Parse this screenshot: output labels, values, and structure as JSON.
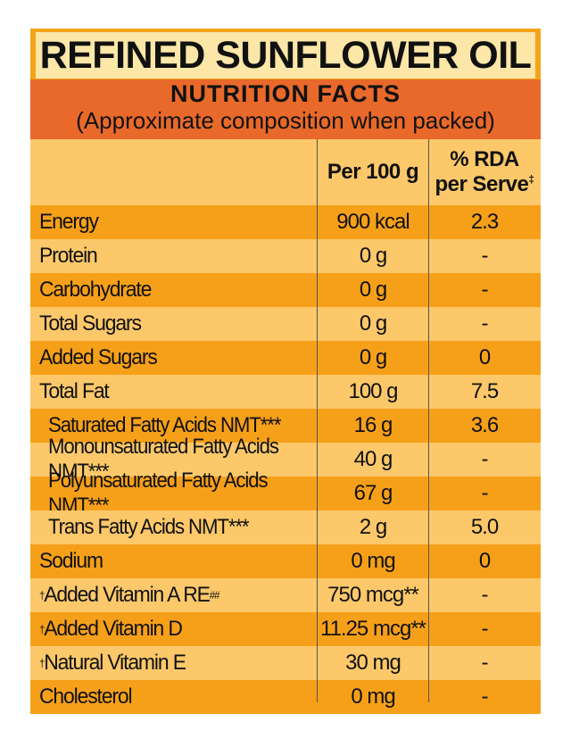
{
  "title": "REFINED SUNFLOWER OIL",
  "nutrition_heading": "NUTRITION FACTS",
  "nutrition_subheading": "(Approximate composition when packed)",
  "columns": {
    "per100": "Per 100 g",
    "rda_line1": "% RDA",
    "rda_line2": "per Serve",
    "rda_mark": "‡"
  },
  "rows": [
    {
      "name": "Energy",
      "prefix": "",
      "suffix": "",
      "per100": "900 kcal",
      "per100_suffix": "",
      "rda": "2.3"
    },
    {
      "name": "Protein",
      "prefix": "",
      "suffix": "",
      "per100": "0 g",
      "per100_suffix": "",
      "rda": "-"
    },
    {
      "name": "Carbohydrate",
      "prefix": "",
      "suffix": "",
      "per100": "0 g",
      "per100_suffix": "",
      "rda": "-"
    },
    {
      "name": "Total Sugars",
      "prefix": "",
      "suffix": "",
      "per100": "0 g",
      "per100_suffix": "",
      "rda": "-"
    },
    {
      "name": "Added Sugars",
      "prefix": "",
      "suffix": "",
      "per100": "0 g",
      "per100_suffix": "",
      "rda": "0"
    },
    {
      "name": "Total Fat",
      "prefix": "",
      "suffix": "",
      "per100": "100 g",
      "per100_suffix": "",
      "rda": "7.5"
    },
    {
      "name": "Saturated Fatty Acids NMT***",
      "prefix": "",
      "suffix": "",
      "per100": "16 g",
      "per100_suffix": "",
      "rda": "3.6"
    },
    {
      "name": "Monounsaturated Fatty Acids NMT***",
      "prefix": "",
      "suffix": "",
      "per100": "40 g",
      "per100_suffix": "",
      "rda": "-"
    },
    {
      "name": "Polyunsaturated Fatty Acids NMT***",
      "prefix": "",
      "suffix": "",
      "per100": "67 g",
      "per100_suffix": "",
      "rda": "-"
    },
    {
      "name": "Trans Fatty Acids NMT***",
      "prefix": "",
      "suffix": "",
      "per100": "2 g",
      "per100_suffix": "",
      "rda": "5.0"
    },
    {
      "name": "Sodium",
      "prefix": "",
      "suffix": "",
      "per100": "0 mg",
      "per100_suffix": "",
      "rda": "0"
    },
    {
      "name": "Added Vitamin A RE",
      "prefix": "†",
      "suffix": "##",
      "per100": "750 mcg",
      "per100_suffix": "**",
      "rda": "-"
    },
    {
      "name": "Added Vitamin D",
      "prefix": "†",
      "suffix": "",
      "per100": "11.25 mcg",
      "per100_suffix": "**",
      "rda": "-"
    },
    {
      "name": "Natural Vitamin E",
      "prefix": "†",
      "suffix": "",
      "per100": "30 mg",
      "per100_suffix": "",
      "rda": "-"
    },
    {
      "name": "Cholesterol",
      "prefix": "",
      "suffix": "",
      "per100": "0 mg",
      "per100_suffix": "",
      "rda": "-"
    }
  ],
  "colors": {
    "title_bg": "#fde7a8",
    "heading_bg": "#e8692a",
    "row_light": "#fcc86a",
    "row_dark": "#f6a01a"
  }
}
